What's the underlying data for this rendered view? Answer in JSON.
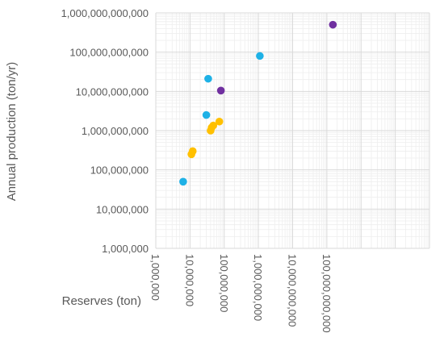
{
  "chart_data": {
    "type": "scatter",
    "xlabel": "Reserves (ton)",
    "ylabel": "Annual production (ton/yr)",
    "x_scale": "log",
    "y_scale": "log",
    "xlim": [
      1000000,
      100000000000000
    ],
    "ylim": [
      1000000,
      1000000000000
    ],
    "x_ticks": [
      {
        "value": 1000000,
        "label": "1,000,000"
      },
      {
        "value": 10000000,
        "label": "10,000,000"
      },
      {
        "value": 100000000,
        "label": "100,000,000"
      },
      {
        "value": 1000000000,
        "label": "1,000,000,000"
      },
      {
        "value": 10000000000,
        "label": "10,000,000,000"
      },
      {
        "value": 100000000000,
        "label": "100,000,000,000"
      }
    ],
    "y_ticks": [
      {
        "value": 1000000,
        "label": "1,000,000"
      },
      {
        "value": 10000000,
        "label": "10,000,000"
      },
      {
        "value": 100000000,
        "label": "100,000,000"
      },
      {
        "value": 1000000000,
        "label": "1,000,000,000"
      },
      {
        "value": 10000000000,
        "label": "10,000,000,000"
      },
      {
        "value": 100000000000,
        "label": "100,000,000,000"
      },
      {
        "value": 1000000000000,
        "label": "1,000,000,000,000"
      }
    ],
    "grid": true,
    "legend": "none",
    "series": [
      {
        "color": "#1EB1E6",
        "points": [
          {
            "x": 6300000,
            "y": 50000000
          },
          {
            "x": 30000000,
            "y": 2500000000
          },
          {
            "x": 34000000,
            "y": 21000000000
          },
          {
            "x": 1100000000,
            "y": 80000000000
          }
        ]
      },
      {
        "color": "#FFC000",
        "points": [
          {
            "x": 11000000,
            "y": 250000000
          },
          {
            "x": 12000000,
            "y": 300000000
          },
          {
            "x": 40000000,
            "y": 1000000000
          },
          {
            "x": 43000000,
            "y": 1200000000
          },
          {
            "x": 48000000,
            "y": 1350000000
          },
          {
            "x": 72000000,
            "y": 1700000000
          }
        ]
      },
      {
        "color": "#7030A0",
        "points": [
          {
            "x": 80000000,
            "y": 10500000000
          },
          {
            "x": 150000000000,
            "y": 500000000000
          }
        ]
      }
    ]
  }
}
